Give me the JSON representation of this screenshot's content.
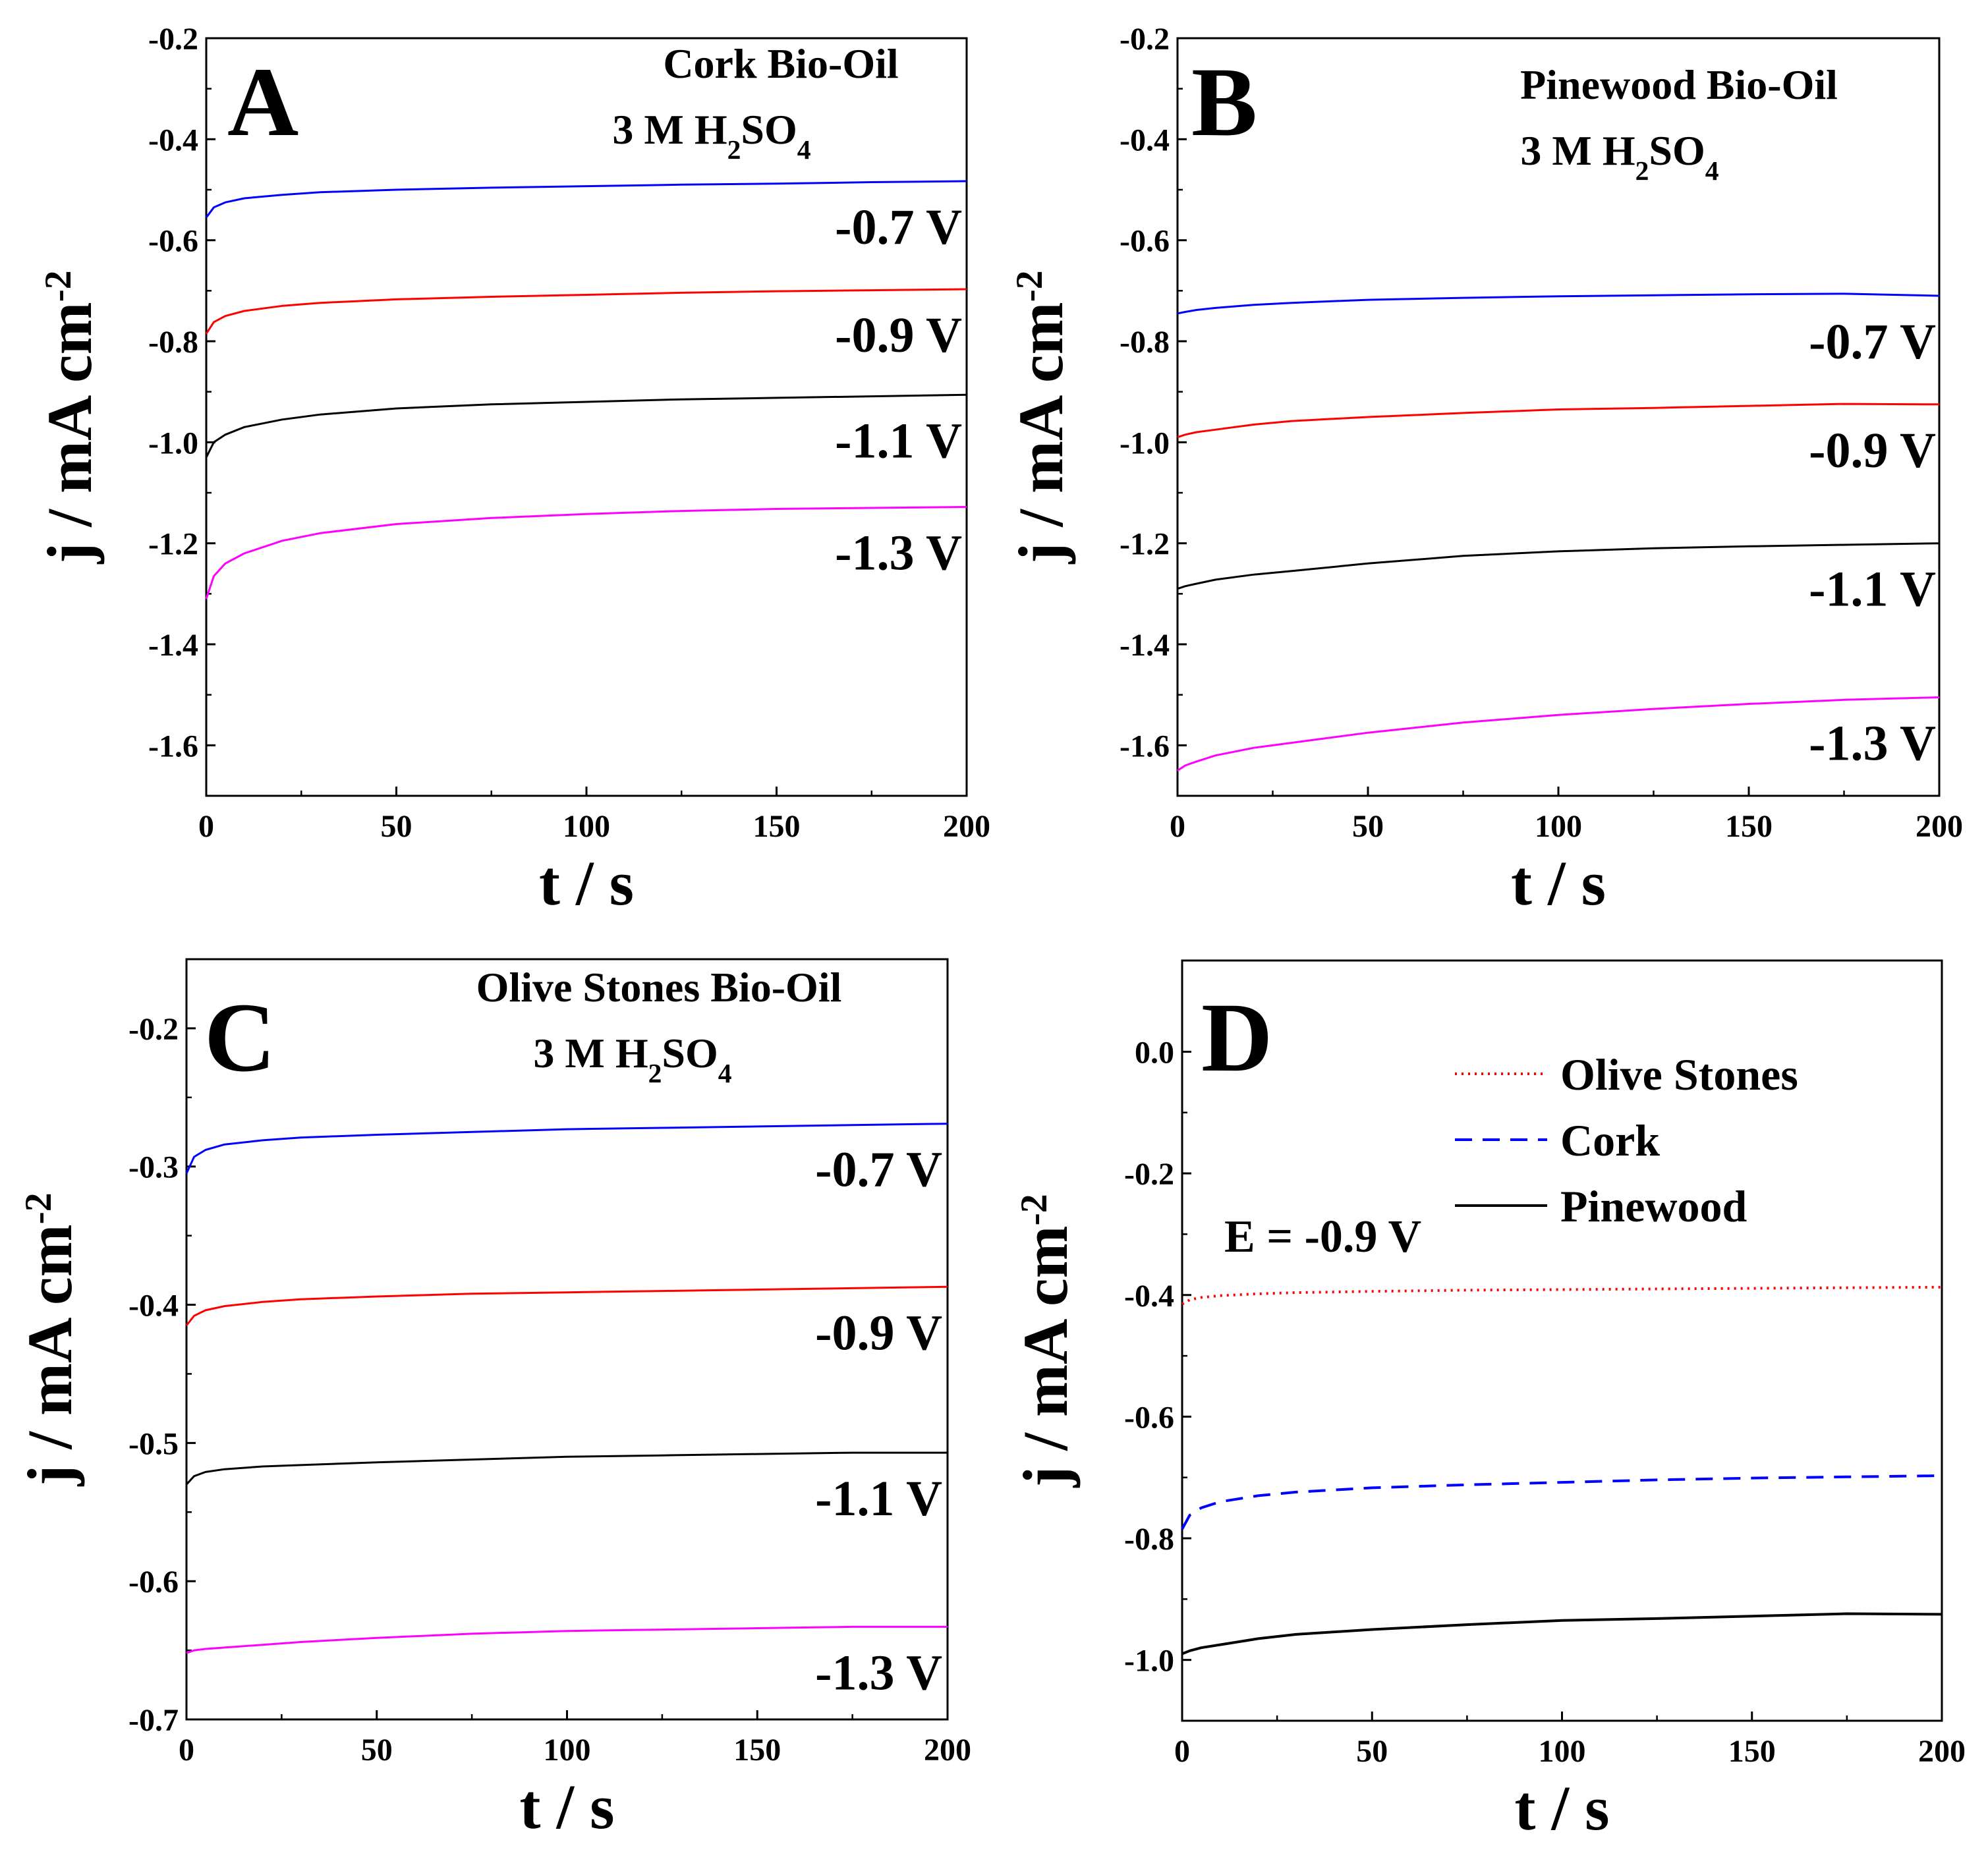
{
  "chart_data": [
    {
      "type": "line",
      "panel": "A",
      "title": "Cork Bio-Oil",
      "subtitle": "3 M H2SO4",
      "xlabel": "t / s",
      "ylabel": "j / mA cm-2",
      "xlim": [
        0,
        200
      ],
      "ylim": [
        -1.7,
        -0.2
      ],
      "xticks": [
        "0",
        "50",
        "100",
        "150",
        "200"
      ],
      "yticks": [
        "-0.2",
        "-0.4",
        "-0.6",
        "-0.8",
        "-1.0",
        "-1.2",
        "-1.4",
        "-1.6"
      ],
      "x": [
        0,
        2,
        5,
        10,
        20,
        30,
        50,
        75,
        100,
        125,
        150,
        175,
        200
      ],
      "series": [
        {
          "name": "-0.7 V",
          "color": "#0000ff",
          "values": [
            -0.555,
            -0.535,
            -0.525,
            -0.517,
            -0.51,
            -0.505,
            -0.5,
            -0.496,
            -0.493,
            -0.49,
            -0.488,
            -0.485,
            -0.483
          ]
        },
        {
          "name": "-0.9 V",
          "color": "#ff0000",
          "values": [
            -0.785,
            -0.762,
            -0.75,
            -0.74,
            -0.73,
            -0.724,
            -0.717,
            -0.712,
            -0.708,
            -0.704,
            -0.701,
            -0.699,
            -0.697
          ]
        },
        {
          "name": "-1.1 V",
          "color": "#000000",
          "values": [
            -1.03,
            -1.0,
            -0.985,
            -0.97,
            -0.955,
            -0.945,
            -0.933,
            -0.925,
            -0.92,
            -0.915,
            -0.912,
            -0.909,
            -0.906
          ]
        },
        {
          "name": "-1.3 V",
          "color": "#ff00ff",
          "values": [
            -1.31,
            -1.265,
            -1.24,
            -1.22,
            -1.195,
            -1.18,
            -1.162,
            -1.15,
            -1.142,
            -1.136,
            -1.132,
            -1.13,
            -1.128
          ]
        }
      ]
    },
    {
      "type": "line",
      "panel": "B",
      "title": "Pinewood Bio-Oil",
      "subtitle": "3 M H2SO4",
      "xlabel": "t / s",
      "ylabel": "j / mA cm-2",
      "xlim": [
        0,
        200
      ],
      "ylim": [
        -1.7,
        -0.2
      ],
      "xticks": [
        "0",
        "50",
        "100",
        "150",
        "200"
      ],
      "yticks": [
        "-0.2",
        "-0.4",
        "-0.6",
        "-0.8",
        "-1.0",
        "-1.2",
        "-1.4",
        "-1.6"
      ],
      "x": [
        0,
        2,
        5,
        10,
        20,
        30,
        50,
        75,
        100,
        125,
        150,
        175,
        200
      ],
      "series": [
        {
          "name": "-0.7 V",
          "color": "#0000ff",
          "values": [
            -0.745,
            -0.742,
            -0.738,
            -0.734,
            -0.728,
            -0.724,
            -0.718,
            -0.714,
            -0.711,
            -0.709,
            -0.707,
            -0.706,
            -0.71
          ]
        },
        {
          "name": "-0.9 V",
          "color": "#ff0000",
          "values": [
            -0.99,
            -0.985,
            -0.98,
            -0.975,
            -0.965,
            -0.958,
            -0.95,
            -0.942,
            -0.935,
            -0.932,
            -0.928,
            -0.924,
            -0.925
          ]
        },
        {
          "name": "-1.1 V",
          "color": "#000000",
          "values": [
            -1.29,
            -1.285,
            -1.28,
            -1.272,
            -1.262,
            -1.255,
            -1.24,
            -1.225,
            -1.216,
            -1.21,
            -1.206,
            -1.203,
            -1.2
          ]
        },
        {
          "name": "-1.3 V",
          "color": "#ff00ff",
          "values": [
            -1.65,
            -1.64,
            -1.632,
            -1.62,
            -1.605,
            -1.595,
            -1.575,
            -1.555,
            -1.54,
            -1.528,
            -1.518,
            -1.51,
            -1.505
          ]
        }
      ]
    },
    {
      "type": "line",
      "panel": "C",
      "title": "Olive Stones Bio-Oil",
      "subtitle": "3 M H2SO4",
      "xlabel": "t / s",
      "ylabel": "j / mA cm-2",
      "xlim": [
        0,
        200
      ],
      "ylim": [
        -0.7,
        -0.15
      ],
      "xticks": [
        "0",
        "50",
        "100",
        "150",
        "200"
      ],
      "yticks": [
        "-0.2",
        "-0.3",
        "-0.4",
        "-0.5",
        "-0.6",
        "-0.7"
      ],
      "x": [
        0,
        2,
        5,
        10,
        20,
        30,
        50,
        75,
        100,
        125,
        150,
        175,
        200
      ],
      "series": [
        {
          "name": "-0.7 V",
          "color": "#0000ff",
          "values": [
            -0.305,
            -0.293,
            -0.288,
            -0.284,
            -0.281,
            -0.279,
            -0.277,
            -0.275,
            -0.273,
            -0.272,
            -0.271,
            -0.27,
            -0.269
          ]
        },
        {
          "name": "-0.9 V",
          "color": "#ff0000",
          "values": [
            -0.415,
            -0.408,
            -0.404,
            -0.401,
            -0.398,
            -0.396,
            -0.394,
            -0.392,
            -0.391,
            -0.39,
            -0.389,
            -0.388,
            -0.387
          ]
        },
        {
          "name": "-1.1 V",
          "color": "#000000",
          "values": [
            -0.53,
            -0.524,
            -0.521,
            -0.519,
            -0.517,
            -0.516,
            -0.514,
            -0.512,
            -0.51,
            -0.509,
            -0.508,
            -0.507,
            -0.507
          ]
        },
        {
          "name": "-1.3 V",
          "color": "#ff00ff",
          "values": [
            -0.652,
            -0.65,
            -0.649,
            -0.648,
            -0.646,
            -0.644,
            -0.641,
            -0.638,
            -0.636,
            -0.635,
            -0.634,
            -0.633,
            -0.633
          ]
        }
      ]
    },
    {
      "type": "line",
      "panel": "D",
      "annotation": "E = -0.9 V",
      "xlabel": "t / s",
      "ylabel": "j / mA cm-2",
      "xlim": [
        0,
        200
      ],
      "ylim": [
        -1.1,
        0.15
      ],
      "xticks": [
        "0",
        "50",
        "100",
        "150",
        "200"
      ],
      "yticks": [
        "0.0",
        "-0.2",
        "-0.4",
        "-0.6",
        "-0.8",
        "-1.0"
      ],
      "legend_position": "top-right",
      "x": [
        0,
        2,
        5,
        10,
        20,
        30,
        50,
        75,
        100,
        125,
        150,
        175,
        200
      ],
      "series": [
        {
          "name": "Olive Stones",
          "color": "#ff0000",
          "style": "dotted",
          "values": [
            -0.415,
            -0.408,
            -0.404,
            -0.401,
            -0.398,
            -0.396,
            -0.394,
            -0.392,
            -0.391,
            -0.39,
            -0.389,
            -0.388,
            -0.387
          ]
        },
        {
          "name": "Cork",
          "color": "#0000ff",
          "style": "dashed",
          "values": [
            -0.785,
            -0.762,
            -0.75,
            -0.74,
            -0.73,
            -0.724,
            -0.717,
            -0.712,
            -0.708,
            -0.704,
            -0.701,
            -0.699,
            -0.697
          ]
        },
        {
          "name": "Pinewood",
          "color": "#000000",
          "style": "solid",
          "values": [
            -0.99,
            -0.985,
            -0.98,
            -0.975,
            -0.965,
            -0.958,
            -0.95,
            -0.942,
            -0.935,
            -0.932,
            -0.928,
            -0.924,
            -0.925
          ]
        }
      ]
    }
  ]
}
